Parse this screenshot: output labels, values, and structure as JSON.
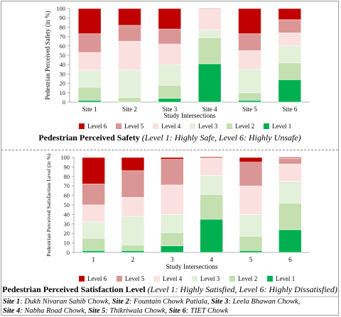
{
  "chart_data": [
    {
      "type": "bar",
      "stacked": true,
      "title": "Pedestrian Perceived Safety",
      "subtitle": "(Level 1: Highly Safe, Level 6: Highly Unsafe)",
      "xlabel": "Study Intersections",
      "ylabel": "Pedestrian Perceived Safety (in %)",
      "ylim": [
        0,
        100
      ],
      "yticks": [
        "0",
        "10",
        "20",
        "30",
        "40",
        "50",
        "60",
        "70",
        "80",
        "90",
        "100"
      ],
      "categories": [
        "Site 1",
        "Site 2",
        "Site 3",
        "Site 4",
        "Site 5",
        "Site 6"
      ],
      "grid": false,
      "legend_position": "bottom",
      "series": [
        {
          "name": "Level 1",
          "color": "#00b050",
          "values": [
            2,
            0,
            4,
            41,
            2,
            24
          ]
        },
        {
          "name": "Level 2",
          "color": "#c4dfb0",
          "values": [
            14,
            5,
            14,
            28,
            8,
            18
          ]
        },
        {
          "name": "Level 3",
          "color": "#e3f0da",
          "values": [
            18,
            29,
            22,
            8,
            25,
            18
          ]
        },
        {
          "name": "Level 4",
          "color": "#fbe0e0",
          "values": [
            19,
            31,
            22,
            22,
            20,
            14
          ]
        },
        {
          "name": "Level 5",
          "color": "#da9694",
          "values": [
            20,
            17,
            16,
            1,
            18,
            14
          ]
        },
        {
          "name": "Level 6",
          "color": "#c00000",
          "values": [
            27,
            18,
            22,
            0,
            27,
            12
          ]
        }
      ]
    },
    {
      "type": "bar",
      "stacked": true,
      "title": "Pedestrian Perceived Satisfaction Level",
      "subtitle": "(Level 1: Highly Satisfied, Level 6: Highly Dissatisfied)",
      "xlabel": "Study Intersections",
      "ylabel": "Pedestrian Perceived Satisfaction Level (in %)",
      "ylim": [
        0,
        100
      ],
      "yticks": [
        "0",
        "10",
        "20",
        "30",
        "40",
        "50",
        "60",
        "70",
        "80",
        "90",
        "100"
      ],
      "categories": [
        "1",
        "2",
        "3",
        "4",
        "5",
        "6"
      ],
      "grid": false,
      "legend_position": "bottom",
      "series": [
        {
          "name": "Level 1",
          "color": "#00b050",
          "values": [
            2,
            2,
            7,
            35,
            2,
            24
          ]
        },
        {
          "name": "Level 2",
          "color": "#c4dfb0",
          "values": [
            13,
            6,
            14,
            26,
            15,
            28
          ]
        },
        {
          "name": "Level 3",
          "color": "#e3f0da",
          "values": [
            17,
            30,
            19,
            20,
            23,
            23
          ]
        },
        {
          "name": "Level 4",
          "color": "#fbe0e0",
          "values": [
            18,
            20,
            31,
            18,
            30,
            18
          ]
        },
        {
          "name": "Level 5",
          "color": "#da9694",
          "values": [
            22,
            28,
            27,
            2,
            25,
            6
          ]
        },
        {
          "name": "Level 6",
          "color": "#c00000",
          "values": [
            28,
            14,
            2,
            0,
            5,
            1
          ]
        }
      ]
    }
  ],
  "legend": [
    "Level 6",
    "Level 5",
    "Level 4",
    "Level 3",
    "Level 2",
    "Level 1"
  ],
  "captions": {
    "safety_title": "Pedestrian Perceived Safety",
    "safety_note": "(Level 1: Highly Safe, Level 6: Highly Unsafe)",
    "satisfaction_title": "Pedestrian Perceived Satisfaction Level",
    "satisfaction_note": "(Level 1: Highly Satisfied, Level 6: Highly Dissatisfied)"
  },
  "sites": [
    {
      "label": "Site 1",
      "name": ": Dukh Nivaran Sahib Chowk, "
    },
    {
      "label": "Site 2",
      "name": ": Fountain Chowk Patiala, "
    },
    {
      "label": "Site 3",
      "name": ": Leela Bhawan Chowk,"
    },
    {
      "label": "Site 4",
      "name": ": Nabha Road Chowk, "
    },
    {
      "label": "Site 5",
      "name": ": Thikriwala Chowk, "
    },
    {
      "label": "Site 6",
      "name": ": TIET Chowk"
    }
  ]
}
